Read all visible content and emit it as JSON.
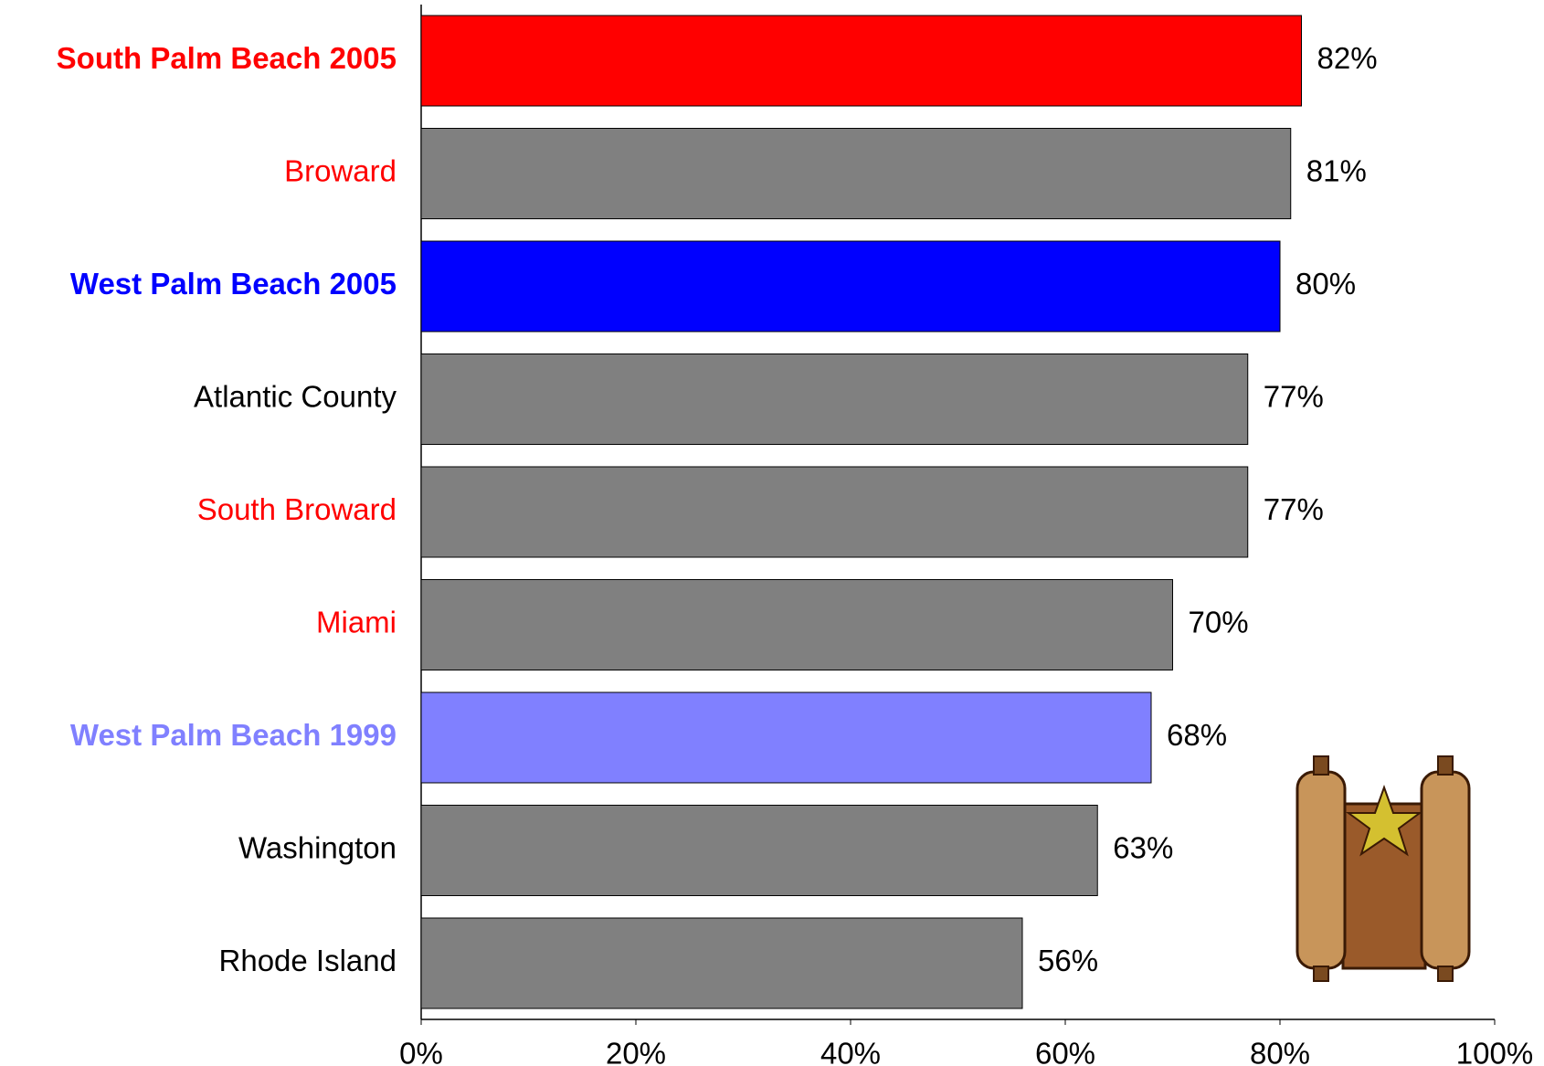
{
  "chart_data": {
    "type": "hbar",
    "categories": [
      "South Palm Beach 2005",
      "Broward",
      "West Palm Beach 2005",
      "Atlantic County",
      "South Broward",
      "Miami",
      "West Palm Beach 1999",
      "Washington",
      "Rhode Island"
    ],
    "category_colors": [
      "#ff0000",
      "#ff0000",
      "#0000ff",
      "#000000",
      "#ff0000",
      "#ff0000",
      "#8080ff",
      "#000000",
      "#000000"
    ],
    "category_bold": [
      true,
      false,
      true,
      false,
      false,
      false,
      true,
      false,
      false
    ],
    "values": [
      82,
      81,
      80,
      77,
      77,
      70,
      68,
      63,
      56
    ],
    "value_labels": [
      "82%",
      "81%",
      "80%",
      "77%",
      "77%",
      "70%",
      "68%",
      "63%",
      "56%"
    ],
    "colors": [
      "#ff0000",
      "#808080",
      "#0000ff",
      "#808080",
      "#808080",
      "#808080",
      "#8080ff",
      "#808080",
      "#808080"
    ],
    "xlim": [
      0,
      100
    ],
    "xticks": [
      {
        "value": 0,
        "label": "0%"
      },
      {
        "value": 20,
        "label": "20%"
      },
      {
        "value": 40,
        "label": "40%"
      },
      {
        "value": 60,
        "label": "60%"
      },
      {
        "value": 80,
        "label": "80%"
      },
      {
        "value": 100,
        "label": "100%"
      }
    ],
    "grid": false
  }
}
